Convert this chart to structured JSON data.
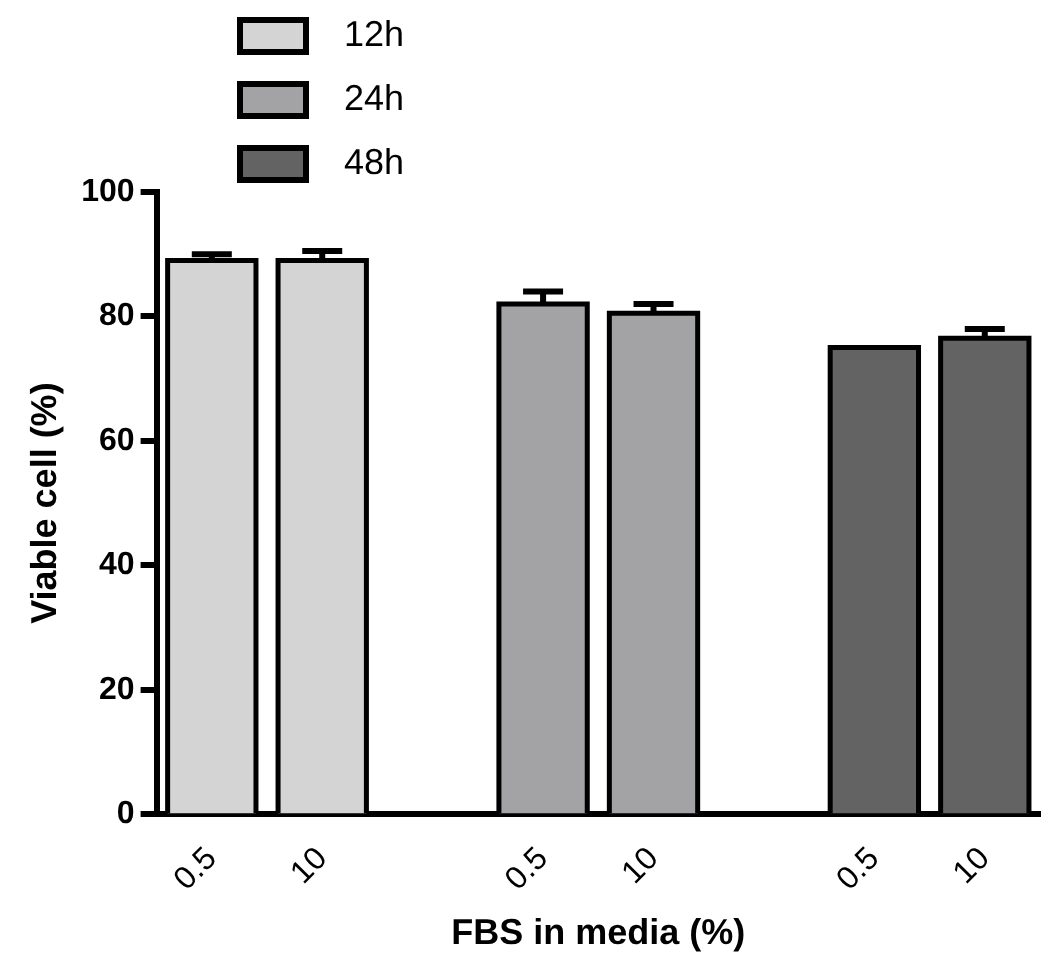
{
  "chart_data": {
    "type": "bar",
    "xlabel": "FBS in media (%)",
    "ylabel": "Viable cell (%)",
    "categories": [
      "0.5",
      "10",
      null,
      "0.5",
      "10",
      null,
      "0.5",
      "10"
    ],
    "series": [
      {
        "name": "12h",
        "color": "#d4d4d4",
        "values": [
          89,
          89,
          null,
          null,
          null,
          null,
          null,
          null
        ],
        "errors": [
          1,
          1.5,
          null,
          null,
          null,
          null,
          null,
          null
        ]
      },
      {
        "name": "24h",
        "color": "#a3a3a6",
        "values": [
          null,
          null,
          null,
          82,
          80.5,
          null,
          null,
          null
        ],
        "errors": [
          null,
          null,
          null,
          2,
          1.5,
          null,
          null,
          null
        ]
      },
      {
        "name": "48h",
        "color": "#636363",
        "values": [
          null,
          null,
          null,
          null,
          null,
          null,
          75,
          76.5
        ],
        "errors": [
          null,
          null,
          null,
          null,
          null,
          null,
          null,
          1.5
        ]
      }
    ],
    "ylim": [
      0,
      100
    ],
    "yticks": [
      0,
      20,
      40,
      60,
      80,
      100
    ],
    "grid": false,
    "legend": "top left"
  }
}
